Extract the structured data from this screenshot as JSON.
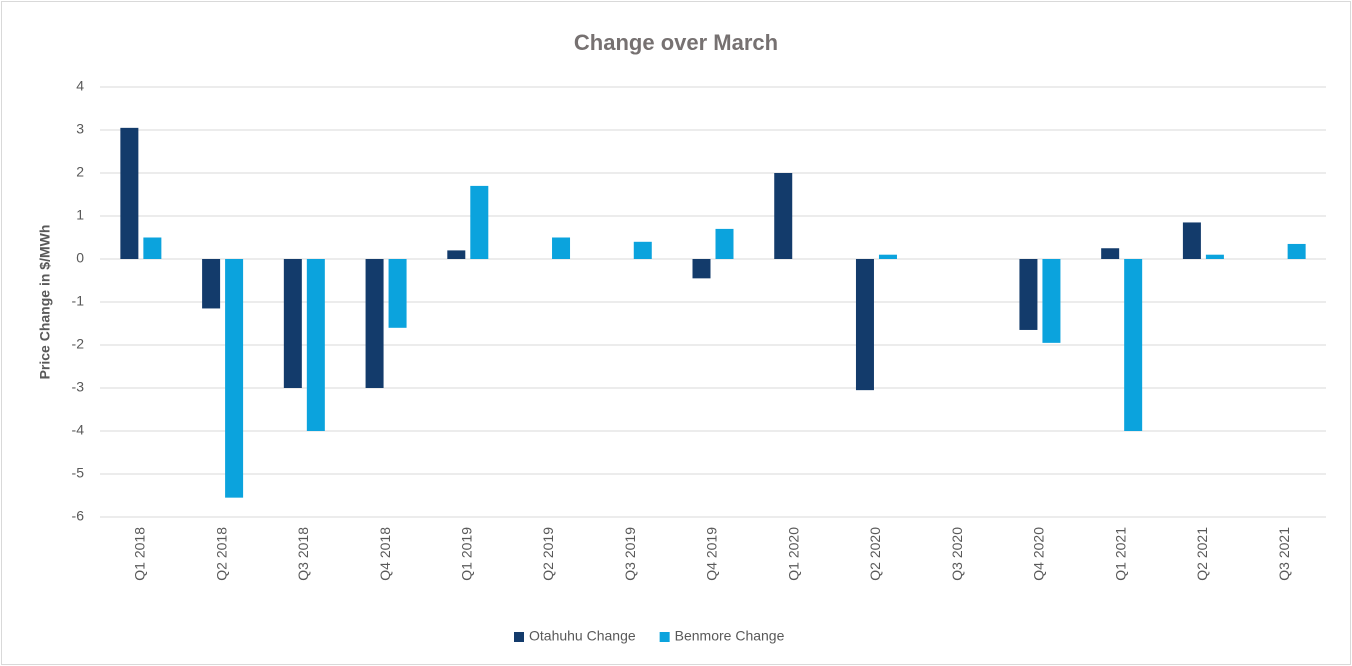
{
  "chart_data": {
    "type": "bar",
    "title": "Change over March",
    "y_label": "Price Change in $/MWh",
    "categories": [
      "Q1 2018",
      "Q2 2018",
      "Q3 2018",
      "Q4 2018",
      "Q1 2019",
      "Q2 2019",
      "Q3 2019",
      "Q4 2019",
      "Q1 2020",
      "Q2 2020",
      "Q3 2020",
      "Q4 2020",
      "Q1 2021",
      "Q2 2021",
      "Q3 2021"
    ],
    "series": [
      {
        "name": "Otahuhu Change",
        "color": "#133b6b",
        "values": [
          3.05,
          -1.15,
          -3.0,
          -3.0,
          0.2,
          0,
          0,
          -0.45,
          2.0,
          -3.05,
          0,
          -1.65,
          0.25,
          0.85,
          0
        ]
      },
      {
        "name": "Benmore Change",
        "color": "#0ba3dd",
        "values": [
          0.5,
          -5.55,
          -4.0,
          -1.6,
          1.7,
          0.5,
          0.4,
          0.7,
          0,
          0.1,
          0,
          -1.95,
          -4.0,
          0.1,
          0.35
        ]
      }
    ],
    "ylim": [
      -6,
      4
    ],
    "yticks": [
      -6,
      -5,
      -4,
      -3,
      -2,
      -1,
      0,
      1,
      2,
      3,
      4
    ],
    "grid": true,
    "legend": "bottom"
  }
}
